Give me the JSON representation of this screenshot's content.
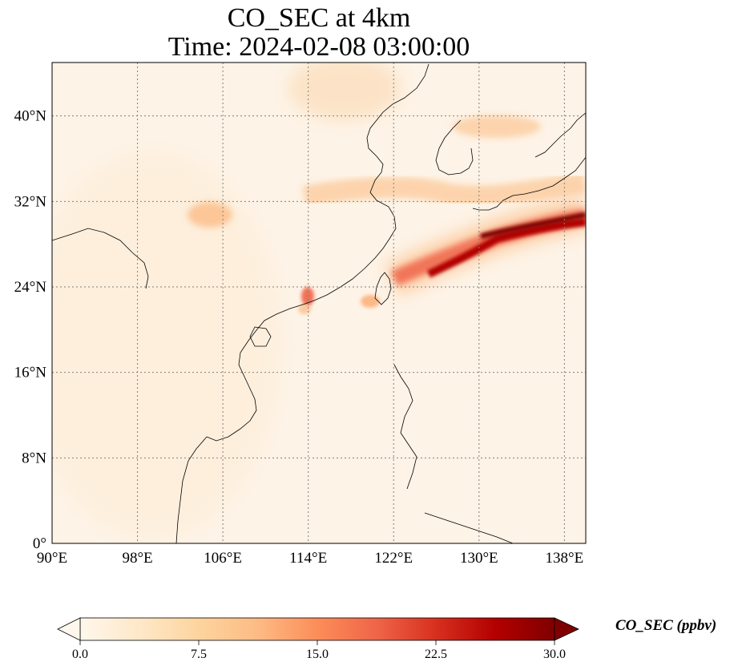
{
  "title": {
    "line1": "CO_SEC at 4km",
    "line2": "Time: 2024-02-08 03:00:00"
  },
  "map": {
    "projection": "PlateCarree",
    "extent": {
      "lon_min": 90,
      "lon_max": 140,
      "lat_min": 0,
      "lat_max": 45
    },
    "gridlines": true,
    "gridline_style": "dotted gray",
    "lon_ticks": [
      {
        "value": 90,
        "label": "90°E"
      },
      {
        "value": 98,
        "label": "98°E"
      },
      {
        "value": 106,
        "label": "106°E"
      },
      {
        "value": 114,
        "label": "114°E"
      },
      {
        "value": 122,
        "label": "122°E"
      },
      {
        "value": 130,
        "label": "130°E"
      },
      {
        "value": 138,
        "label": "138°E"
      }
    ],
    "lat_ticks": [
      {
        "value": 0,
        "label": "0°"
      },
      {
        "value": 8,
        "label": "8°N"
      },
      {
        "value": 16,
        "label": "16°N"
      },
      {
        "value": 24,
        "label": "24°N"
      },
      {
        "value": 32,
        "label": "32°N"
      },
      {
        "value": 40,
        "label": "40°N"
      }
    ],
    "background_color": "#fdf3e6",
    "features": [
      {
        "name": "plume-east-china-sea",
        "lon": 131.5,
        "lat": 27.5,
        "value": 30
      },
      {
        "name": "plume-japan-south",
        "lon": 136.0,
        "lat": 29.5,
        "value": 30
      },
      {
        "name": "plume-mid-latitude-band",
        "lon": 122.0,
        "lat": 32.0,
        "value": 8
      },
      {
        "name": "plume-sichuan",
        "lon": 104.5,
        "lat": 30.5,
        "value": 8
      },
      {
        "name": "plume-hong-kong",
        "lon": 114.0,
        "lat": 22.5,
        "value": 14
      },
      {
        "name": "plume-taiwan-west",
        "lon": 119.5,
        "lat": 22.8,
        "value": 11
      },
      {
        "name": "plume-north",
        "lon": 117.5,
        "lat": 42.5,
        "value": 4
      }
    ]
  },
  "colorbar": {
    "label": "CO_SEC (ppbv)",
    "min": 0.0,
    "max": 30.0,
    "extend": "both",
    "colormap": "OrRd",
    "ticks": [
      "0.0",
      "7.5",
      "15.0",
      "22.5",
      "30.0"
    ],
    "colors": [
      "#fff7ec",
      "#fee8c8",
      "#fdd49e",
      "#fdbb84",
      "#fc8d59",
      "#ef6548",
      "#d7301f",
      "#b30000",
      "#7f0000"
    ]
  }
}
